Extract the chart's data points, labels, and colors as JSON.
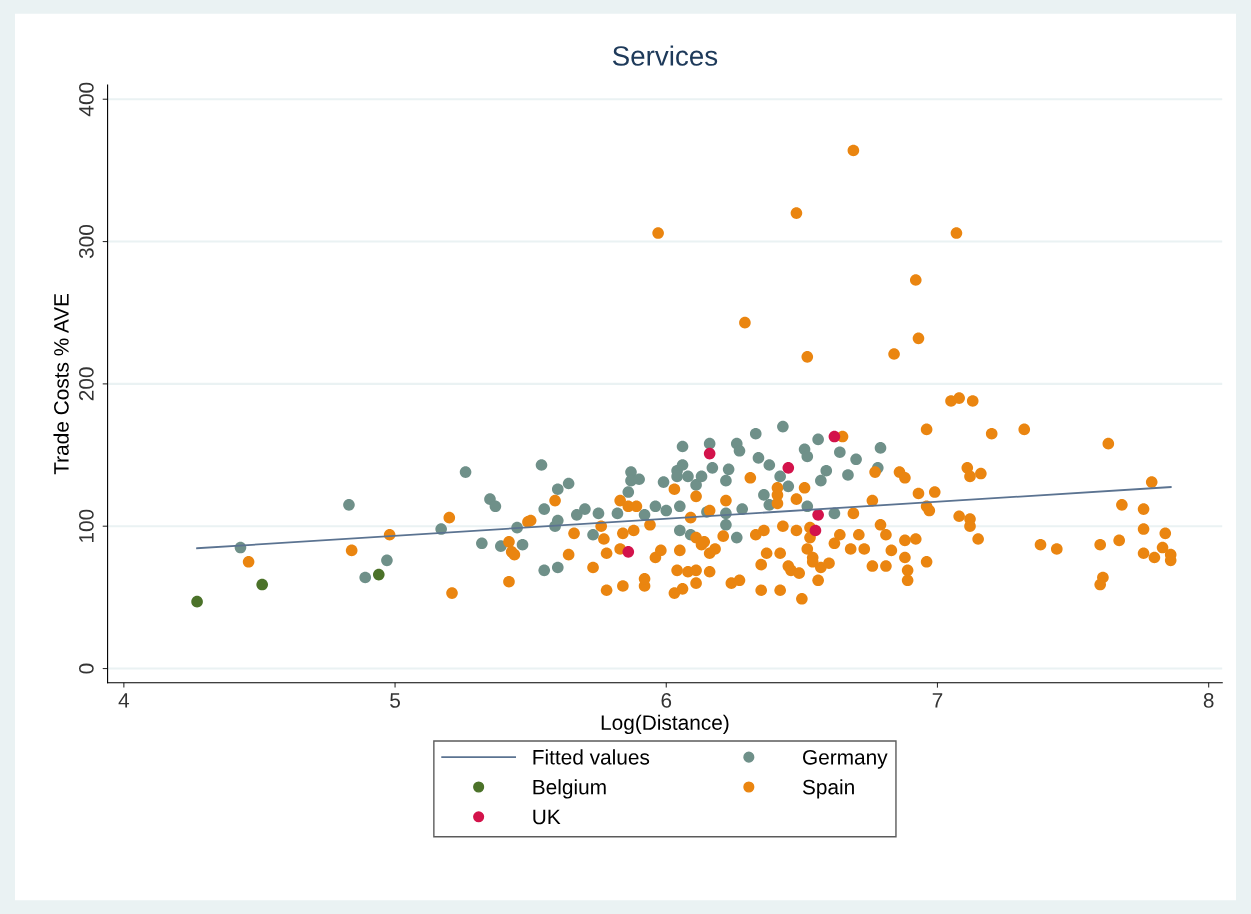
{
  "chart_data": {
    "type": "scatter",
    "title": "Services",
    "xlabel": "Log(Distance)",
    "ylabel": "Trade Costs % AVE",
    "xlim": [
      3.94,
      8.05
    ],
    "ylim": [
      -10,
      410
    ],
    "xticks": [
      4,
      5,
      6,
      7,
      8
    ],
    "yticks": [
      0,
      100,
      200,
      300,
      400
    ],
    "grid": "y",
    "legend": "bottom",
    "marker": "circle",
    "series": [
      {
        "name": "Fitted values",
        "type": "line",
        "marker": "none",
        "color": "#5b7391",
        "x": [
          4.27,
          7.86
        ],
        "values": [
          84.5,
          127.5
        ]
      },
      {
        "name": "Belgium",
        "color": "#4b7229",
        "x": [
          4.27,
          4.51,
          4.94
        ],
        "values": [
          47,
          59,
          66
        ]
      },
      {
        "name": "UK",
        "color": "#d3134b",
        "x": [
          6.16,
          6.45,
          6.62,
          6.56,
          6.55,
          5.86
        ],
        "values": [
          151,
          141,
          163,
          108,
          97,
          82
        ]
      },
      {
        "name": "Germany",
        "color": "#6f9089",
        "x": [
          4.43,
          4.83,
          4.89,
          4.97,
          5.17,
          5.26,
          5.35,
          5.37,
          5.32,
          5.39,
          5.45,
          5.47,
          5.54,
          5.55,
          5.6,
          5.64,
          5.6,
          5.59,
          5.55,
          5.6,
          5.67,
          5.7,
          5.75,
          5.73,
          5.82,
          5.87,
          5.87,
          5.9,
          5.86,
          5.92,
          5.96,
          5.99,
          6.0,
          6.04,
          6.06,
          6.06,
          6.05,
          6.04,
          6.08,
          6.11,
          6.05,
          6.09,
          6.13,
          6.16,
          6.17,
          6.22,
          6.23,
          6.26,
          6.27,
          6.15,
          6.22,
          6.22,
          6.28,
          6.26,
          6.33,
          6.34,
          6.38,
          6.36,
          6.38,
          6.43,
          6.42,
          6.45,
          6.51,
          6.52,
          6.56,
          6.59,
          6.57,
          6.52,
          6.62,
          6.64,
          6.7,
          6.67,
          6.79,
          6.78
        ],
        "values": [
          85,
          115,
          64,
          76,
          98,
          138,
          119,
          114,
          88,
          86,
          99,
          87,
          143,
          112,
          126,
          130,
          104,
          100,
          69,
          71,
          108,
          112,
          109,
          94,
          109,
          138,
          132,
          133,
          124,
          108,
          114,
          131,
          111,
          139,
          143,
          156,
          114,
          135,
          135,
          129,
          97,
          94,
          135,
          158,
          141,
          132,
          140,
          158,
          153,
          110,
          109,
          101,
          112,
          92,
          165,
          148,
          143,
          122,
          115,
          170,
          135,
          128,
          154,
          149,
          161,
          139,
          132,
          114,
          109,
          152,
          147,
          136,
          155,
          141
        ]
      },
      {
        "name": "Spain",
        "color": "#ea8510",
        "x": [
          4.46,
          4.84,
          4.98,
          5.2,
          5.21,
          5.42,
          5.43,
          5.44,
          5.42,
          5.49,
          5.59,
          5.5,
          5.66,
          5.64,
          5.73,
          5.78,
          5.76,
          5.77,
          5.78,
          5.83,
          5.83,
          5.84,
          5.86,
          5.89,
          5.88,
          5.84,
          5.92,
          5.92,
          5.94,
          5.96,
          5.98,
          6.03,
          6.05,
          6.04,
          6.03,
          6.06,
          6.08,
          6.11,
          6.09,
          6.11,
          6.13,
          6.14,
          6.11,
          6.11,
          6.16,
          6.18,
          6.16,
          6.16,
          6.22,
          6.21,
          6.24,
          6.27,
          6.31,
          6.33,
          6.36,
          6.37,
          6.35,
          6.35,
          6.41,
          6.41,
          6.41,
          6.42,
          6.42,
          6.43,
          6.45,
          6.46,
          6.48,
          6.48,
          6.49,
          6.5,
          6.51,
          6.53,
          6.53,
          6.52,
          6.54,
          6.54,
          6.56,
          6.57,
          6.6,
          6.65,
          6.62,
          6.64,
          6.69,
          6.68,
          6.73,
          6.71,
          6.76,
          6.77,
          6.76,
          6.79,
          6.81,
          6.83,
          6.81,
          6.86,
          6.88,
          6.88,
          6.88,
          6.89,
          6.89,
          6.92,
          6.93,
          6.96,
          6.96,
          6.96,
          7.05,
          7.08,
          7.13,
          7.2,
          7.32,
          7.63,
          7.11,
          7.12,
          7.16,
          6.99,
          6.97,
          7.08,
          7.12,
          7.12,
          7.15,
          7.38,
          7.44,
          7.6,
          7.67,
          7.61,
          7.6,
          7.68,
          7.79,
          7.76,
          7.76,
          7.76,
          7.8,
          7.83,
          7.84,
          7.86,
          7.86,
          5.97,
          6.48,
          6.69,
          7.07,
          6.92,
          6.29,
          6.52,
          6.84,
          6.93
        ],
        "values": [
          75,
          83,
          94,
          106,
          53,
          89,
          82,
          80,
          61,
          103,
          118,
          104,
          95,
          80,
          71,
          55,
          100,
          91,
          81,
          84,
          118,
          95,
          114,
          114,
          97,
          58,
          58,
          63,
          101,
          78,
          83,
          126,
          83,
          69,
          53,
          56,
          68,
          121,
          106,
          92,
          87,
          89,
          69,
          60,
          68,
          84,
          81,
          111,
          118,
          93,
          60,
          62,
          134,
          94,
          97,
          81,
          73,
          55,
          127,
          122,
          116,
          81,
          55,
          100,
          72,
          69,
          97,
          119,
          67,
          49,
          127,
          99,
          92,
          84,
          78,
          75,
          62,
          71,
          74,
          163,
          88,
          94,
          109,
          84,
          84,
          94,
          118,
          138,
          72,
          101,
          94,
          83,
          72,
          138,
          134,
          90,
          78,
          69,
          62,
          91,
          123,
          168,
          114,
          75,
          188,
          190,
          188,
          165,
          168,
          158,
          141,
          135,
          137,
          124,
          111,
          107,
          105,
          100,
          91,
          87,
          84,
          87,
          90,
          64,
          59,
          115,
          131,
          112,
          98,
          81,
          78,
          85,
          95,
          80,
          76,
          306,
          320,
          364,
          306,
          273,
          243,
          219,
          221,
          232
        ]
      }
    ]
  }
}
